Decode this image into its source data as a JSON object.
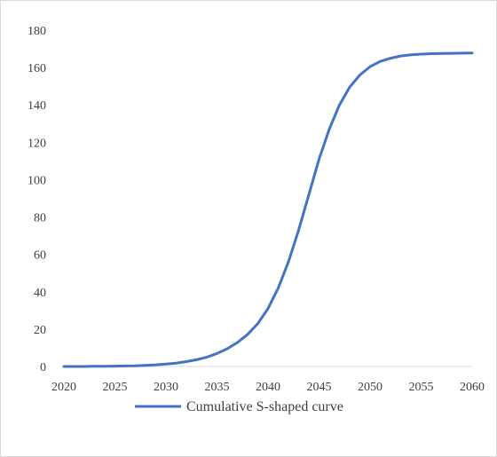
{
  "chart_data": {
    "type": "line",
    "title": "",
    "xlabel": "",
    "ylabel": "",
    "xlim": [
      2020,
      2060
    ],
    "ylim": [
      0,
      180
    ],
    "x_ticks": [
      "2020",
      "2025",
      "2030",
      "2035",
      "2040",
      "2045",
      "2050",
      "2055",
      "2060"
    ],
    "y_ticks": [
      "0",
      "20",
      "40",
      "60",
      "80",
      "100",
      "120",
      "140",
      "160",
      "180"
    ],
    "grid": false,
    "legend_position": "bottom",
    "series": [
      {
        "name": "Cumulative S-shaped curve",
        "color": "#4472c4",
        "x": [
          2020,
          2021,
          2022,
          2023,
          2024,
          2025,
          2026,
          2027,
          2028,
          2029,
          2030,
          2031,
          2032,
          2033,
          2034,
          2035,
          2036,
          2037,
          2038,
          2039,
          2040,
          2041,
          2042,
          2043,
          2044,
          2045,
          2046,
          2047,
          2048,
          2049,
          2050,
          2051,
          2052,
          2053,
          2054,
          2055,
          2056,
          2057,
          2058,
          2059,
          2060
        ],
        "values": [
          0,
          0,
          0,
          0.1,
          0.1,
          0.2,
          0.3,
          0.4,
          0.6,
          0.9,
          1.3,
          1.8,
          2.6,
          3.6,
          5,
          7,
          9.5,
          12.8,
          17.2,
          23,
          31,
          42,
          56,
          73,
          92,
          111,
          127,
          140,
          149.5,
          156,
          160.5,
          163.3,
          165,
          166.2,
          166.8,
          167.2,
          167.4,
          167.5,
          167.6,
          167.7,
          167.8
        ]
      }
    ]
  }
}
